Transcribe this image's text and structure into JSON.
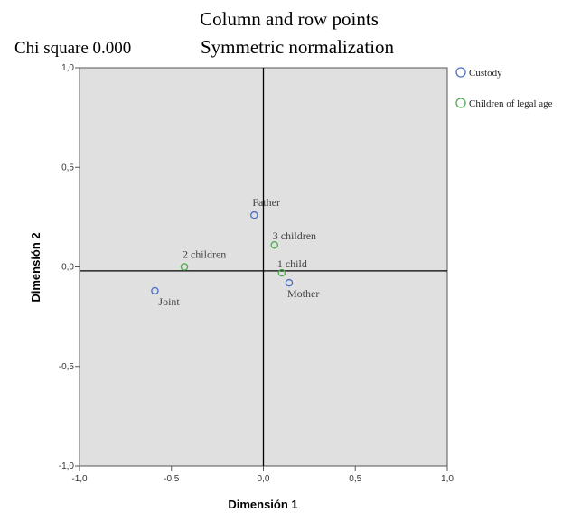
{
  "chart_data": {
    "type": "scatter",
    "title": "Column and row points",
    "subtitle_left": "Chi square 0.000",
    "subtitle_right": "Symmetric normalization",
    "xlabel": "Dimensión 1",
    "ylabel": "Dimensión 2",
    "xlim": [
      -1.0,
      1.0
    ],
    "ylim": [
      -1.0,
      1.0
    ],
    "xticks": [
      -1.0,
      -0.5,
      0.0,
      0.5,
      1.0
    ],
    "yticks": [
      -1.0,
      -0.5,
      0.0,
      0.5,
      1.0
    ],
    "xtick_labels": [
      "-1,0",
      "-0,5",
      "0,0",
      "0,5",
      "1,0"
    ],
    "ytick_labels": [
      "-1,0",
      "-0,5",
      "0,0",
      "0,5",
      "1,0"
    ],
    "grid": false,
    "reference_lines": {
      "x": 0.0,
      "y": -0.02
    },
    "legend_position": "right",
    "plot_background": "#e0e0e0",
    "series": [
      {
        "name": "Custody",
        "color": "#4a6fc2",
        "points": [
          {
            "label": "Father",
            "x": -0.05,
            "y": 0.26
          },
          {
            "label": "Mother",
            "x": 0.14,
            "y": -0.08
          },
          {
            "label": "Joint",
            "x": -0.59,
            "y": -0.12
          }
        ]
      },
      {
        "name": "Children of legal age",
        "color": "#4caa4c",
        "points": [
          {
            "label": "3 children",
            "x": 0.06,
            "y": 0.11
          },
          {
            "label": "2 children",
            "x": -0.43,
            "y": 0.0
          },
          {
            "label": "1 child",
            "x": 0.1,
            "y": -0.03
          }
        ]
      }
    ]
  }
}
